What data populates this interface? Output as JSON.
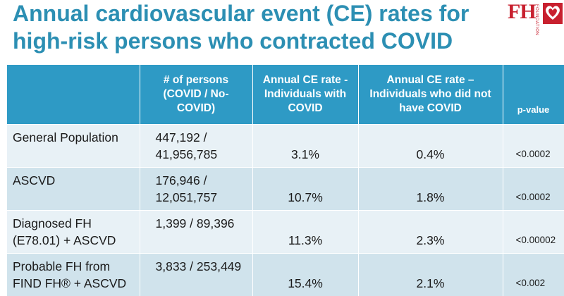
{
  "title": "Annual cardiovascular event (CE) rates for high-risk persons who contracted COVID",
  "logo": {
    "text": "FH",
    "subtext": "FOUNDATION"
  },
  "table": {
    "headers": [
      "",
      "# of persons (COVID / No-COVID)",
      "Annual CE rate - Individuals with COVID",
      "Annual CE rate – Individuals who did not have COVID",
      "p-value"
    ],
    "rows": [
      {
        "group": "General Population",
        "persons": "447,192 / 41,956,785",
        "rate_covid": "3.1%",
        "rate_no_covid": "0.4%",
        "p_value": "<0.0002"
      },
      {
        "group": "ASCVD",
        "persons": "176,946 / 12,051,757",
        "rate_covid": "10.7%",
        "rate_no_covid": "1.8%",
        "p_value": "<0.0002"
      },
      {
        "group": "Diagnosed FH (E78.01) + ASCVD",
        "persons": "1,399 / 89,396",
        "rate_covid": "11.3%",
        "rate_no_covid": "2.3%",
        "p_value": "<0.00002"
      },
      {
        "group": "Probable FH from FIND FH® + ASCVD",
        "persons": "3,833 / 253,449",
        "rate_covid": "15.4%",
        "rate_no_covid": "2.1%",
        "p_value": "<0.002"
      }
    ]
  },
  "colors": {
    "title": "#2c8fb3",
    "header_bg": "#2e9ac5",
    "row_light": "#e8f1f6",
    "row_dark": "#d0e3ec",
    "logo_red": "#c8202f"
  }
}
